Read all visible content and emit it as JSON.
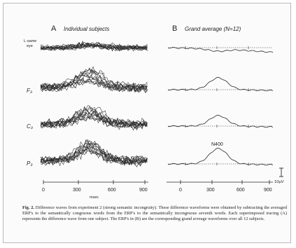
{
  "panels": {
    "a": {
      "letter": "A",
      "title": "Individual subjects"
    },
    "b": {
      "letter": "B",
      "title": "Grand average (N=12)"
    }
  },
  "rows": [
    {
      "label_line1": "L-same",
      "label_line2": "eye"
    },
    {
      "label_line1": "F₃",
      "label_line2": ""
    },
    {
      "label_line1": "C₃",
      "label_line2": ""
    },
    {
      "label_line1": "P₃",
      "label_line2": ""
    }
  ],
  "axis": {
    "ticks": [
      "0",
      "300",
      "600",
      "900"
    ],
    "unit": "msec"
  },
  "component_label": "N400",
  "scale_bar": {
    "value": "10μV"
  },
  "caption": {
    "label": "Fig. 2.",
    "text": "Difference waves from experiment 2 (strong semantic incongruity). These difference waveforms were obtained by subtracting the averaged ERP's to the semantically congruous words from the ERP's to the semantically incongruous seventh words. Each superimposed tracing (A) represents the difference wave from one subject. The ERP's in (B) are the corresponding grand average waveforms over all 12 subjects."
  },
  "colors": {
    "trace": "#2a2a2a",
    "frame": "#b9b9b9",
    "background": "#fbfbfb"
  }
}
